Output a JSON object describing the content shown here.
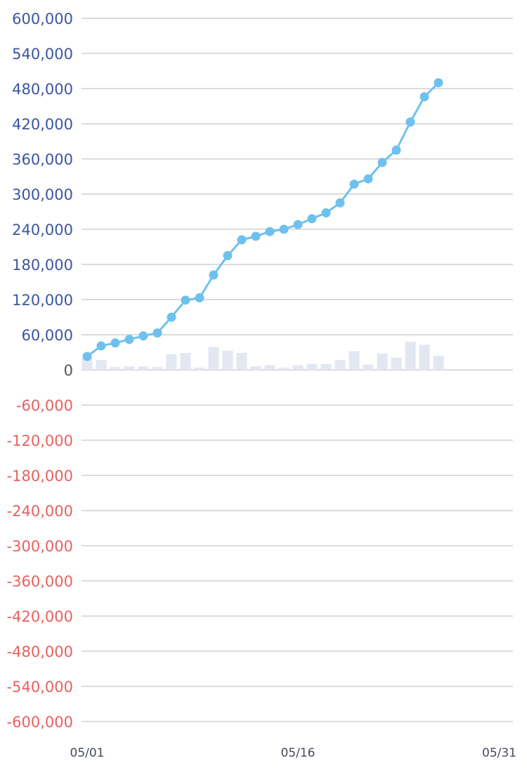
{
  "chart_data": {
    "type": "line",
    "title": "",
    "xlabel": "",
    "ylabel": "",
    "ylim": [
      -600000,
      600000
    ],
    "y_ticks": [
      600000,
      540000,
      480000,
      420000,
      360000,
      300000,
      240000,
      180000,
      120000,
      60000,
      0,
      -60000,
      -120000,
      -180000,
      -240000,
      -300000,
      -360000,
      -420000,
      -480000,
      -540000,
      -600000
    ],
    "y_tick_labels": [
      "600,000",
      "540,000",
      "480,000",
      "420,000",
      "360,000",
      "300,000",
      "240,000",
      "180,000",
      "120,000",
      "60,000",
      "0",
      "-60,000",
      "-120,000",
      "-180,000",
      "-240,000",
      "-300,000",
      "-360,000",
      "-420,000",
      "-480,000",
      "-540,000",
      "-600,000"
    ],
    "x_range": [
      "05/01",
      "05/31"
    ],
    "x_tick_labels": [
      "05/01",
      "05/16",
      "05/31"
    ],
    "grid": true,
    "x": [
      "05/01",
      "05/02",
      "05/03",
      "05/04",
      "05/05",
      "05/06",
      "05/07",
      "05/08",
      "05/09",
      "05/10",
      "05/11",
      "05/12",
      "05/13",
      "05/14",
      "05/15",
      "05/16",
      "05/17",
      "05/18",
      "05/19",
      "05/20",
      "05/21",
      "05/22",
      "05/23",
      "05/24",
      "05/25",
      "05/26"
    ],
    "series": [
      {
        "type": "line",
        "values": [
          23000,
          41000,
          46000,
          52000,
          58000,
          63000,
          90000,
          119000,
          123000,
          162000,
          195000,
          222000,
          228000,
          236000,
          240000,
          248000,
          258000,
          268000,
          285000,
          317000,
          326000,
          354000,
          375000,
          423000,
          466000,
          490000
        ]
      },
      {
        "type": "bar",
        "values": [
          20000,
          17000,
          5000,
          6000,
          6000,
          5000,
          27000,
          29000,
          4000,
          39000,
          33000,
          29000,
          6000,
          8000,
          4000,
          8000,
          10000,
          10000,
          17000,
          32000,
          9000,
          28000,
          21000,
          48000,
          43000,
          24000
        ]
      }
    ],
    "colors": {
      "line": "#6ec1ed",
      "bar": "#e3e7f2",
      "grid": "#dcdcdc",
      "positive_tick": "#3b55a2",
      "negative_tick": "#e86060",
      "zero_tick": "#555555"
    }
  }
}
